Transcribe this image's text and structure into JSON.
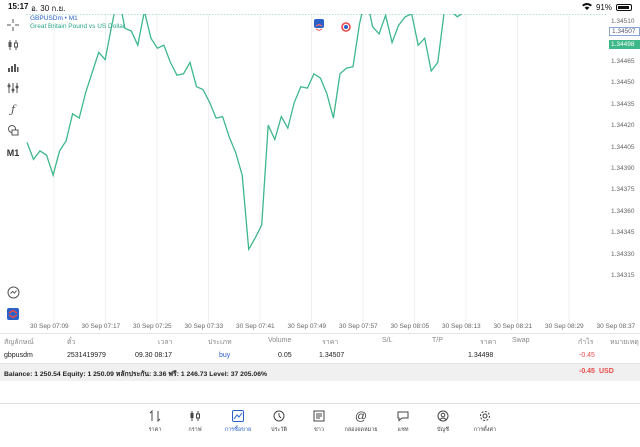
{
  "status_bar": {
    "time": "15:17",
    "date": "อ. 30 ก.ย.",
    "battery": "91%",
    "battery_level": 0.91
  },
  "chart": {
    "symbol_line": "GBPUSDm • M1",
    "description": "Great Britain Pound vs US Dollar",
    "timeframe_label": "M1",
    "line_color": "#3db88a",
    "ask_line_color": "#8aa6d6",
    "bid_line_color": "#3db88a",
    "price_ticks": [
      "1.34465",
      "1.34450",
      "1.34435",
      "1.34420",
      "1.34405",
      "1.34390",
      "1.34375",
      "1.34360",
      "1.34345",
      "1.34330",
      "1.34315"
    ],
    "ask_label": "1.34507",
    "bid_label": "1.34498",
    "top_label": "1.34510",
    "time_ticks": [
      "30 Sep 07:09",
      "30 Sep 07:17",
      "30 Sep 07:25",
      "30 Sep 07:33",
      "30 Sep 07:41",
      "30 Sep 07:49",
      "30 Sep 07:57",
      "30 Sep 08:05",
      "30 Sep 08:13",
      "30 Sep 08:21",
      "30 Sep 08:29",
      "30 Sep 08:37"
    ],
    "ask_price": 1.34507,
    "bid_price": 1.34498,
    "price_series": [
      1.34408,
      1.34396,
      1.34402,
      1.34399,
      1.34385,
      1.34402,
      1.34409,
      1.34428,
      1.34425,
      1.34443,
      1.34457,
      1.34471,
      1.34466,
      1.3449,
      1.34512,
      1.34488,
      1.34486,
      1.34476,
      1.345,
      1.34481,
      1.34474,
      1.34476,
      1.34464,
      1.34455,
      1.34456,
      1.34464,
      1.34447,
      1.34445,
      1.34436,
      1.34425,
      1.34426,
      1.34412,
      1.34401,
      1.34385,
      1.34333,
      1.34341,
      1.3435,
      1.3442,
      1.3441,
      1.34426,
      1.34418,
      1.34436,
      1.34447,
      1.34446,
      1.34456,
      1.34453,
      1.34442,
      1.34425,
      1.34456,
      1.3446,
      1.34461,
      1.34491,
      1.34511,
      1.34489,
      1.34484,
      1.34497,
      1.34478,
      1.3449,
      1.34496,
      1.34498,
      1.34476,
      1.34481,
      1.34458,
      1.34464,
      1.345,
      1.345,
      1.34496,
      1.34499
    ]
  },
  "tools": {
    "crosshair": "crosshair-icon",
    "candles": "candlestick-icon",
    "bars": "bar-chart-icon",
    "indicators": "indicators-icon",
    "function": "ƒ",
    "shapes": "shapes-icon",
    "m1": "M1",
    "zoom": "zoom-icon",
    "trade": "trade-icon"
  },
  "trades": {
    "headers": [
      "สัญลักษณ์",
      "ตั๋ว",
      "เวลา",
      "ประเภท",
      "Volume",
      "ราคา",
      "S/L",
      "T/P",
      "ราคา",
      "Swap",
      "กำไร",
      "หมายเหตุ"
    ],
    "row": {
      "symbol": "gbpusdm",
      "ticket": "2531419979",
      "time": "09.30 08:17",
      "type": "buy",
      "volume": "0.05",
      "open_price": "1.34507",
      "sl": "",
      "tp": "",
      "price": "1.34498",
      "swap": "",
      "profit": "-0.45",
      "comment": ""
    },
    "balance_text": "Balance: 1 250.54 Equity: 1 250.09 หลักประกัน: 3.36 ฟรี: 1 246.73 Level: 37 205.06%",
    "total_profit": "-0.45",
    "currency": "USD"
  },
  "nav": [
    {
      "label": "ราคา",
      "icon": "quotes-icon"
    },
    {
      "label": "กราฟ",
      "icon": "chart-icon"
    },
    {
      "label": "การซื้อขาย",
      "icon": "trade-icon"
    },
    {
      "label": "ประวัติ",
      "icon": "history-icon"
    },
    {
      "label": "ข่าว",
      "icon": "news-icon"
    },
    {
      "label": "กล่องจดหมาย",
      "icon": "mailbox-icon"
    },
    {
      "label": "แชท",
      "icon": "chat-icon"
    },
    {
      "label": "บัญชี",
      "icon": "account-icon"
    },
    {
      "label": "การตั้งค่า",
      "icon": "settings-icon"
    }
  ],
  "nav_active_index": 2
}
